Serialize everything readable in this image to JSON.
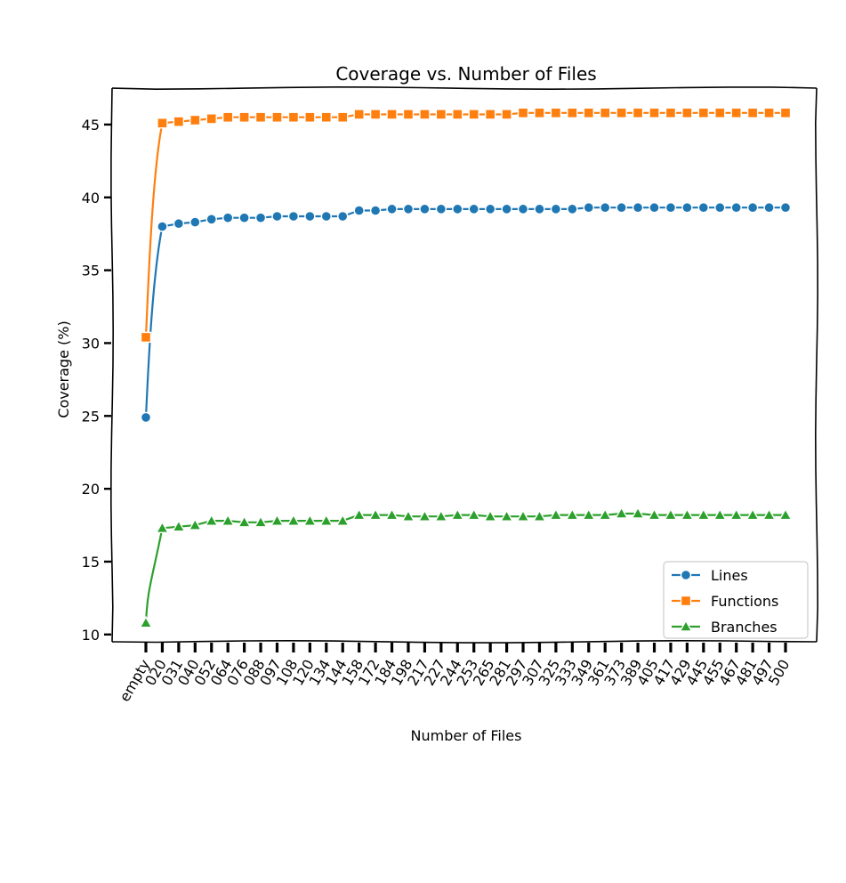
{
  "chart_data": {
    "type": "line",
    "title": "Coverage vs. Number of Files",
    "xlabel": "Number of Files",
    "ylabel": "Coverage (%)",
    "ylim": [
      9.5,
      47.5
    ],
    "yticks": [
      10,
      15,
      20,
      25,
      30,
      35,
      40,
      45
    ],
    "grid": false,
    "legend_position": "lower-right",
    "categories": [
      "empty",
      "020",
      "031",
      "040",
      "052",
      "064",
      "076",
      "088",
      "097",
      "108",
      "120",
      "134",
      "144",
      "158",
      "172",
      "184",
      "198",
      "217",
      "227",
      "244",
      "253",
      "265",
      "281",
      "297",
      "307",
      "325",
      "333",
      "349",
      "361",
      "373",
      "389",
      "405",
      "417",
      "429",
      "445",
      "455",
      "467",
      "481",
      "497",
      "500"
    ],
    "series": [
      {
        "name": "Lines",
        "color": "#1f77b4",
        "marker": "circle",
        "values": [
          24.9,
          38.0,
          38.2,
          38.3,
          38.5,
          38.6,
          38.6,
          38.6,
          38.7,
          38.7,
          38.7,
          38.7,
          38.7,
          39.1,
          39.1,
          39.2,
          39.2,
          39.2,
          39.2,
          39.2,
          39.2,
          39.2,
          39.2,
          39.2,
          39.2,
          39.2,
          39.2,
          39.3,
          39.3,
          39.3,
          39.3,
          39.3,
          39.3,
          39.3,
          39.3,
          39.3,
          39.3,
          39.3,
          39.3,
          39.3
        ]
      },
      {
        "name": "Functions",
        "color": "#ff7f0e",
        "marker": "square",
        "values": [
          30.4,
          45.1,
          45.2,
          45.3,
          45.4,
          45.5,
          45.5,
          45.5,
          45.5,
          45.5,
          45.5,
          45.5,
          45.5,
          45.7,
          45.7,
          45.7,
          45.7,
          45.7,
          45.7,
          45.7,
          45.7,
          45.7,
          45.7,
          45.8,
          45.8,
          45.8,
          45.8,
          45.8,
          45.8,
          45.8,
          45.8,
          45.8,
          45.8,
          45.8,
          45.8,
          45.8,
          45.8,
          45.8,
          45.8,
          45.8
        ]
      },
      {
        "name": "Branches",
        "color": "#2ca02c",
        "marker": "triangle",
        "values": [
          10.8,
          17.3,
          17.4,
          17.5,
          17.8,
          17.8,
          17.7,
          17.7,
          17.8,
          17.8,
          17.8,
          17.8,
          17.8,
          18.2,
          18.2,
          18.2,
          18.1,
          18.1,
          18.1,
          18.2,
          18.2,
          18.1,
          18.1,
          18.1,
          18.1,
          18.2,
          18.2,
          18.2,
          18.2,
          18.3,
          18.3,
          18.2,
          18.2,
          18.2,
          18.2,
          18.2,
          18.2,
          18.2,
          18.2,
          18.2
        ]
      }
    ]
  }
}
